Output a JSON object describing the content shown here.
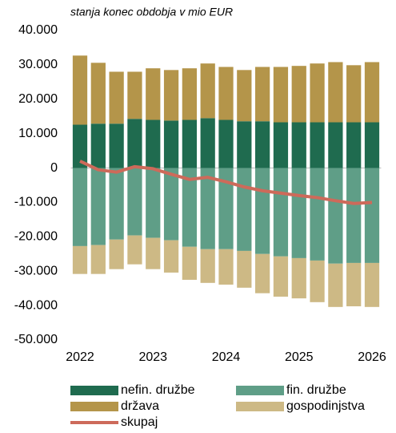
{
  "chart_data": {
    "type": "bar",
    "stacked": true,
    "subtitle": "stanja konec obdobja v mio EUR",
    "categories": [
      "2022",
      null,
      null,
      null,
      "2023",
      null,
      null,
      null,
      "2024",
      null,
      null,
      null,
      "2025",
      null,
      null,
      null,
      "2026"
    ],
    "series": [
      {
        "name": "nefin. družbe",
        "color": "#1f6b4f",
        "values": [
          12600,
          12900,
          12900,
          14300,
          14000,
          13800,
          14000,
          14500,
          14000,
          13600,
          13600,
          13300,
          13300,
          13300,
          13300,
          13300,
          13300
        ]
      },
      {
        "name": "fin. družbe",
        "color": "#5f9e87",
        "values": [
          -22700,
          -22400,
          -20800,
          -19600,
          -20300,
          -21000,
          -22900,
          -23600,
          -23600,
          -24100,
          -25000,
          -25700,
          -26200,
          -26900,
          -27800,
          -27600,
          -27600
        ]
      },
      {
        "name": "država",
        "color": "#b4954a",
        "values": [
          20100,
          17700,
          15100,
          13700,
          15000,
          14700,
          15000,
          15900,
          15400,
          14900,
          15800,
          16100,
          16400,
          17100,
          17500,
          16600,
          17500
        ]
      },
      {
        "name": "gospodinjstva",
        "color": "#cdb985",
        "values": [
          -8100,
          -8400,
          -8600,
          -8400,
          -9100,
          -9400,
          -9600,
          -9800,
          -10300,
          -10700,
          -11400,
          -11700,
          -11700,
          -12100,
          -12600,
          -12600,
          -12800
        ]
      },
      {
        "name": "skupaj",
        "type": "line",
        "color": "#cd6a5a",
        "values": [
          2000,
          -500,
          -1200,
          400,
          -200,
          -1800,
          -3300,
          -2700,
          -4000,
          -5500,
          -6600,
          -7300,
          -8000,
          -8600,
          -9500,
          -10300,
          -10000
        ]
      }
    ],
    "ylim": [
      -50000,
      40000
    ],
    "yticks": [
      {
        "value": -50000,
        "label": "-50.000"
      },
      {
        "value": -40000,
        "label": "-40.000"
      },
      {
        "value": -30000,
        "label": "-30.000"
      },
      {
        "value": -20000,
        "label": "-20.000"
      },
      {
        "value": -10000,
        "label": "-10.000"
      },
      0,
      {
        "value": 10000,
        "label": "10.000"
      },
      {
        "value": 20000,
        "label": "20.000"
      },
      {
        "value": 30000,
        "label": "30.000"
      },
      {
        "value": 40000,
        "label": "40.000"
      }
    ],
    "grid": false
  }
}
